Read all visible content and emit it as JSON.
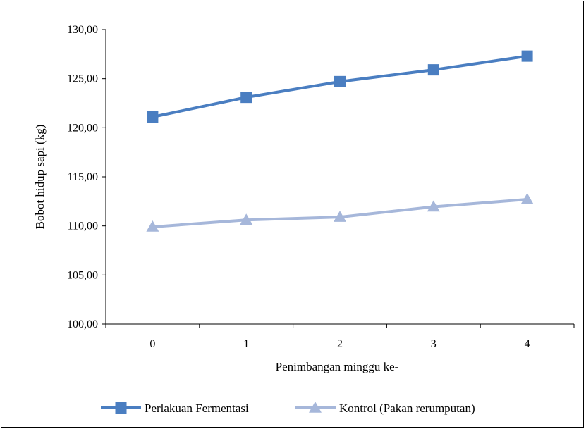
{
  "chart_data": {
    "type": "line",
    "x": [
      0,
      1,
      2,
      3,
      4
    ],
    "x_tick_labels": [
      "0",
      "1",
      "2",
      "3",
      "4"
    ],
    "xlabel": "Penimbangan minggu ke-",
    "ylabel": "Bobot hidup sapi (kg)",
    "ylim": [
      100,
      130
    ],
    "y_tick_labels": [
      "100,00",
      "105,00",
      "110,00",
      "115,00",
      "120,00",
      "125,00",
      "130,00"
    ],
    "grid": false,
    "legend_position": "bottom",
    "series": [
      {
        "name": "Perlakuan Fermentasi",
        "values": [
          121.1,
          123.1,
          124.7,
          125.9,
          127.3
        ],
        "color": "#4A7EC1",
        "marker": "square"
      },
      {
        "name": "Kontrol (Pakan rerumputan)",
        "values": [
          109.9,
          110.6,
          110.9,
          111.95,
          112.7
        ],
        "color": "#A6B7DA",
        "marker": "triangle"
      }
    ]
  }
}
